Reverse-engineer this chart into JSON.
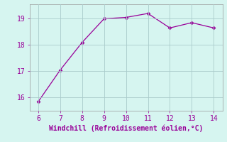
{
  "x": [
    6,
    7,
    8,
    9,
    10,
    11,
    12,
    13,
    14
  ],
  "y": [
    15.85,
    17.05,
    18.1,
    19.0,
    19.05,
    19.2,
    18.65,
    18.85,
    18.65
  ],
  "line_color": "#990099",
  "marker": "D",
  "marker_size": 2.5,
  "bg_color": "#d6f5f0",
  "grid_color": "#aacccc",
  "xlabel": "Windchill (Refroidissement éolien,°C)",
  "xlabel_color": "#990099",
  "xlabel_fontsize": 7,
  "tick_color": "#990099",
  "tick_fontsize": 7,
  "xlim": [
    5.6,
    14.4
  ],
  "ylim": [
    15.5,
    19.55
  ],
  "yticks": [
    16,
    17,
    18,
    19
  ],
  "xticks": [
    6,
    7,
    8,
    9,
    10,
    11,
    12,
    13,
    14
  ]
}
